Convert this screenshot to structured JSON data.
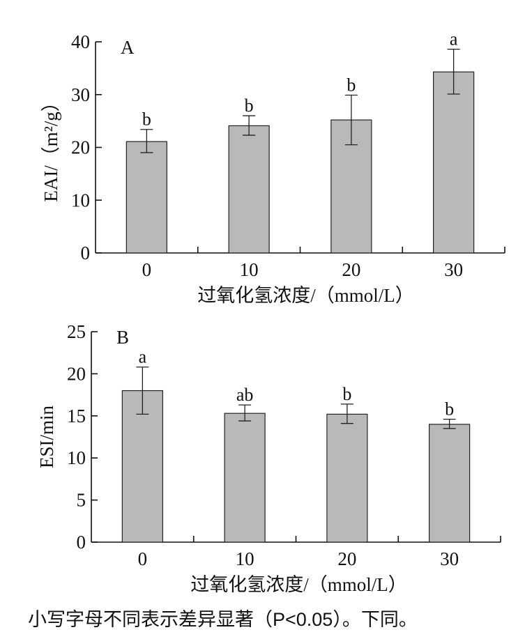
{
  "chart_data": [
    {
      "type": "bar",
      "panel_label": "A",
      "categories": [
        "0",
        "10",
        "20",
        "30"
      ],
      "values": [
        21.1,
        24.1,
        25.2,
        34.3
      ],
      "errors_lower": [
        2.1,
        1.8,
        4.7,
        4.2
      ],
      "errors_upper": [
        2.3,
        1.9,
        4.7,
        4.3
      ],
      "significance": [
        "b",
        "b",
        "b",
        "a"
      ],
      "xlabel": "过氧化氢浓度/（mmol/L）",
      "ylabel": "EAI/（m²/g）",
      "ylim": [
        0,
        40
      ],
      "yticks": [
        0,
        10,
        20,
        30,
        40
      ],
      "grid": false
    },
    {
      "type": "bar",
      "panel_label": "B",
      "categories": [
        "0",
        "10",
        "20",
        "30"
      ],
      "values": [
        18.0,
        15.3,
        15.2,
        14.0
      ],
      "errors_lower": [
        2.8,
        0.9,
        1.1,
        0.5
      ],
      "errors_upper": [
        2.8,
        1.0,
        1.2,
        0.6
      ],
      "significance": [
        "a",
        "ab",
        "b",
        "b"
      ],
      "xlabel": "过氧化氢浓度/（mmol/L）",
      "ylabel": "ESI/min",
      "ylim": [
        0,
        25
      ],
      "yticks": [
        0,
        5,
        10,
        15,
        20,
        25
      ],
      "grid": false
    }
  ],
  "note": "小写字母不同表示差异显著（P<0.05）。下同。",
  "colors": {
    "bar_fill": "#b9b9b9",
    "bar_stroke": "#222222"
  }
}
